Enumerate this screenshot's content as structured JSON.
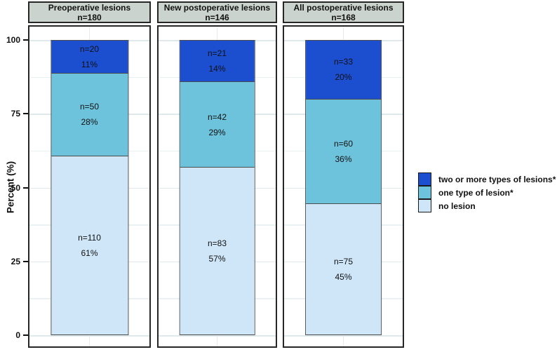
{
  "chart_data": {
    "type": "bar",
    "variant": "stacked-percent",
    "orientation": "vertical",
    "ylabel": "Percent (%)",
    "ylim": [
      0,
      100
    ],
    "yticks": [
      0,
      25,
      50,
      75,
      100
    ],
    "minor_gridline_step": 12.5,
    "grid": "horizontal major and minor lines, light gray; one vertical centerline per facet",
    "legend_position": "right",
    "panels": [
      {
        "title": "Preoperative lesions",
        "subtitle": "n=180",
        "segments": [
          {
            "series": "two or more types of lesions*",
            "n": 20,
            "percent": 11,
            "label_n": "n=20",
            "label_pct": "11%",
            "color": "#1c4ed0"
          },
          {
            "series": "one type of lesion*",
            "n": 50,
            "percent": 28,
            "label_n": "n=50",
            "label_pct": "28%",
            "color": "#6ec3dc"
          },
          {
            "series": "no lesion",
            "n": 110,
            "percent": 61,
            "label_n": "n=110",
            "label_pct": "61%",
            "color": "#cfe6f8"
          }
        ]
      },
      {
        "title": "New postoperative lesions",
        "subtitle": "n=146",
        "segments": [
          {
            "series": "two or more types of lesions*",
            "n": 21,
            "percent": 14,
            "label_n": "n=21",
            "label_pct": "14%",
            "color": "#1c4ed0"
          },
          {
            "series": "one type of lesion*",
            "n": 42,
            "percent": 29,
            "label_n": "n=42",
            "label_pct": "29%",
            "color": "#6ec3dc"
          },
          {
            "series": "no lesion",
            "n": 83,
            "percent": 57,
            "label_n": "n=83",
            "label_pct": "57%",
            "color": "#cfe6f8"
          }
        ]
      },
      {
        "title": "All postoperative lesions",
        "subtitle": "n=168",
        "segments": [
          {
            "series": "two or more types of lesions*",
            "n": 33,
            "percent": 20,
            "label_n": "n=33",
            "label_pct": "20%",
            "color": "#1c4ed0"
          },
          {
            "series": "one type of lesion*",
            "n": 60,
            "percent": 36,
            "label_n": "n=60",
            "label_pct": "36%",
            "color": "#6ec3dc"
          },
          {
            "series": "no lesion",
            "n": 75,
            "percent": 45,
            "label_n": "n=75",
            "label_pct": "45%",
            "color": "#cfe6f8"
          }
        ]
      }
    ],
    "legend": {
      "items": [
        {
          "label": "two or more types of lesions*",
          "color": "#1c4ed0"
        },
        {
          "label": "one type of lesion*",
          "color": "#6ec3dc"
        },
        {
          "label": "no lesion",
          "color": "#cfe6f8"
        }
      ]
    }
  },
  "colors": {
    "strip_bg": "#cbd3cf",
    "panel_border": "#262626",
    "bar_border": "#4d4d4d",
    "grid_major": "#dfe9eb",
    "grid_minor": "#eaf1f2",
    "text": "#111111"
  }
}
